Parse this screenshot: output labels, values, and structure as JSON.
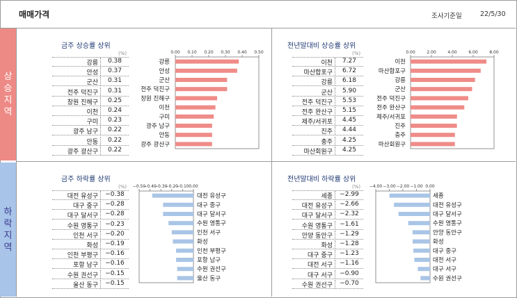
{
  "header": {
    "title": "매매가격",
    "date_label": "조사기준일",
    "date": "22/5/30"
  },
  "side": {
    "rise": "상승지역",
    "fall": "하락지역"
  },
  "unit": "(%)",
  "colors": {
    "rise_bar": "#ef8c88",
    "fall_bar": "#a9c5e6",
    "title": "#1f3a73"
  },
  "chart_data": [
    {
      "type": "bar",
      "orientation": "horizontal",
      "title": "금주 상승률 상위",
      "categories": [
        "강릉",
        "안성",
        "군산",
        "전주 덕진구",
        "창원 진해구",
        "이천",
        "구미",
        "광주 남구",
        "안동",
        "광주 광산구"
      ],
      "values": [
        0.38,
        0.37,
        0.31,
        0.31,
        0.25,
        0.24,
        0.23,
        0.22,
        0.22,
        0.22
      ],
      "value_labels": [
        "0.38",
        "0.37",
        "0.31",
        "0.31",
        "0.25",
        "0.24",
        "0.23",
        "0.22",
        "0.22",
        "0.22"
      ],
      "xlim": [
        0,
        0.5
      ],
      "ticks": [
        "0.00",
        "0.10",
        "0.20",
        "0.30",
        "0.40",
        "0.50"
      ],
      "tick_values": [
        0,
        0.1,
        0.2,
        0.3,
        0.4,
        0.5
      ]
    },
    {
      "type": "bar",
      "orientation": "horizontal",
      "title": "전년말대비 상승률 상위",
      "categories": [
        "이천",
        "마산합포구",
        "강릉",
        "군산",
        "전주 덕진구",
        "전주 완산구",
        "제주/서귀포",
        "진주",
        "충주",
        "마산회원구"
      ],
      "values": [
        7.27,
        6.72,
        6.18,
        5.9,
        5.53,
        5.15,
        4.45,
        4.44,
        4.25,
        4.25
      ],
      "value_labels": [
        "7.27",
        "6.72",
        "6.18",
        "5.90",
        "5.53",
        "5.15",
        "4.45",
        "4.44",
        "4.25",
        "4.25"
      ],
      "xlim": [
        0,
        8
      ],
      "ticks": [
        "0.00",
        "2.00",
        "4.00",
        "6.00",
        "8.00"
      ],
      "tick_values": [
        0,
        2,
        4,
        6,
        8
      ]
    },
    {
      "type": "bar",
      "orientation": "horizontal",
      "title": "금주 하락률 상위",
      "categories": [
        "대전 유성구",
        "대구 중구",
        "대구 달서구",
        "수원 영통구",
        "인천 서구",
        "화성",
        "인천 부평구",
        "포항 남구",
        "수원 권선구",
        "울산 동구"
      ],
      "values": [
        -0.38,
        -0.28,
        -0.28,
        -0.23,
        -0.2,
        -0.19,
        -0.16,
        -0.16,
        -0.15,
        -0.15
      ],
      "value_labels": [
        "−0.38",
        "−0.28",
        "−0.28",
        "−0.23",
        "−0.20",
        "−0.19",
        "−0.16",
        "−0.16",
        "−0.15",
        "−0.15"
      ],
      "xlim": [
        -0.5,
        0
      ],
      "ticks": [
        "−0.50",
        "−0.40",
        "−0.30",
        "−0.20",
        "−0.10",
        "0.00"
      ],
      "tick_values": [
        -0.5,
        -0.4,
        -0.3,
        -0.2,
        -0.1,
        0
      ]
    },
    {
      "type": "bar",
      "orientation": "horizontal",
      "title": "전년말대비 하락률 상위",
      "categories": [
        "세종",
        "대전 유성구",
        "대구 달서구",
        "수원 영통구",
        "안양 동안구",
        "화성",
        "대구 중구",
        "대전 서구",
        "대구 서구",
        "수원 권선구"
      ],
      "values": [
        -2.99,
        -2.66,
        -2.32,
        -1.61,
        -1.29,
        -1.28,
        -1.23,
        -1.16,
        -0.9,
        -0.7
      ],
      "value_labels": [
        "−2.99",
        "−2.66",
        "−2.32",
        "−1.61",
        "−1.29",
        "−1.28",
        "−1.23",
        "−1.16",
        "−0.90",
        "−0.70"
      ],
      "xlim": [
        -4,
        0
      ],
      "ticks": [
        "−4.00",
        "−3.00",
        "−2.00",
        "−1.00",
        "0.00"
      ],
      "tick_values": [
        -4,
        -3,
        -2,
        -1,
        0
      ]
    }
  ]
}
